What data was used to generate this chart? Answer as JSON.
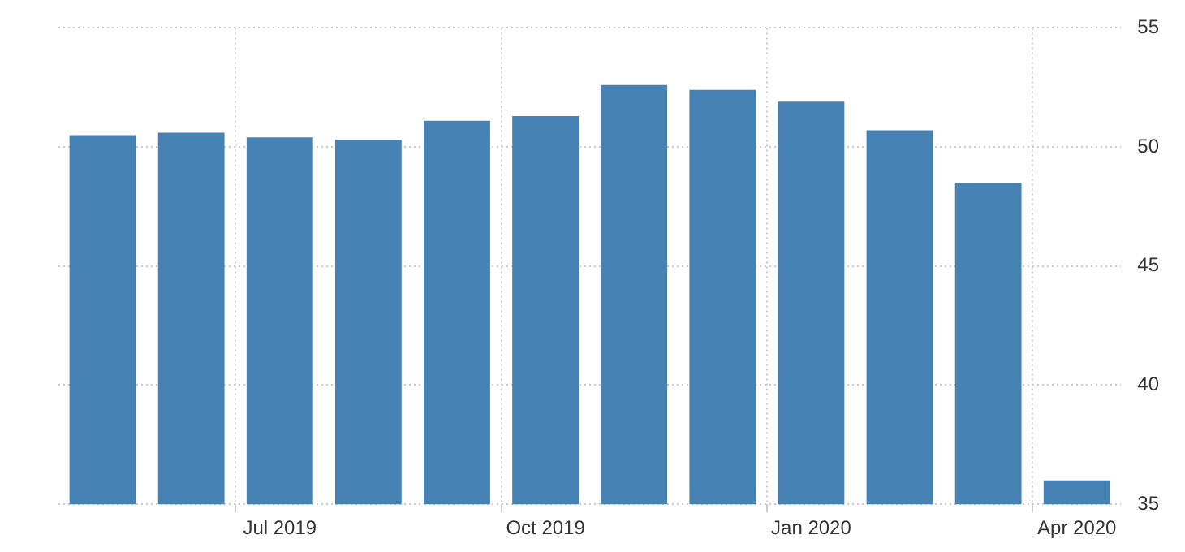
{
  "chart_data": {
    "type": "bar",
    "categories": [
      null,
      null,
      "Jul 2019",
      null,
      null,
      "Oct 2019",
      null,
      null,
      "Jan 2020",
      null,
      null,
      "Apr 2020"
    ],
    "values": [
      50.5,
      50.6,
      50.4,
      50.3,
      51.1,
      51.3,
      52.6,
      52.4,
      51.9,
      50.7,
      48.5,
      36.0
    ],
    "color": "#4682b4",
    "ylim": [
      35,
      55
    ],
    "yticks": [
      35,
      40,
      45,
      50,
      55
    ],
    "grid": true,
    "legend": false
  }
}
